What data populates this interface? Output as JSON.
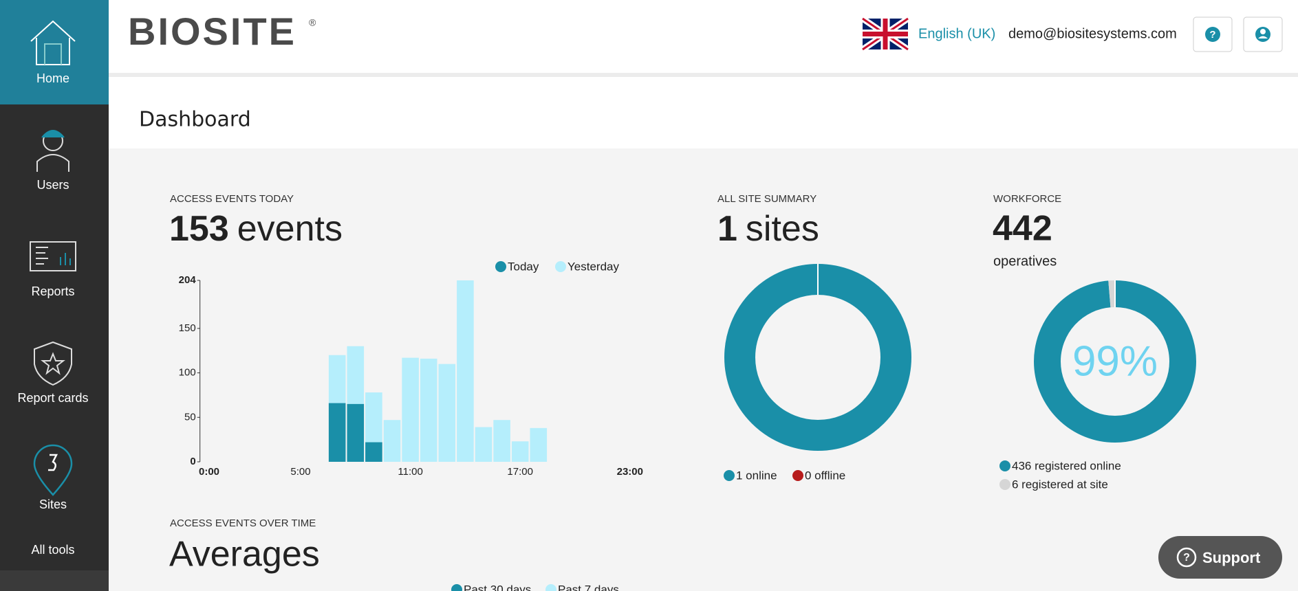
{
  "sidebar": {
    "items": [
      "Home",
      "Users",
      "Reports",
      "Report cards",
      "Sites",
      "All tools"
    ]
  },
  "header": {
    "logo": "BIOSITE",
    "trademark": "®",
    "language": "English (UK)",
    "email": "demo@biositesystems.com"
  },
  "page_title": "Dashboard",
  "access_events": {
    "label": "ACCESS EVENTS TODAY",
    "count": 153,
    "unit": "events",
    "chart": {
      "type": "bar",
      "categories": [
        "0:00",
        null,
        null,
        null,
        null,
        "5:00",
        null,
        null,
        null,
        null,
        null,
        "11:00",
        null,
        null,
        null,
        null,
        null,
        "17:00",
        null,
        null,
        null,
        null,
        null,
        "23:00"
      ],
      "series": [
        {
          "name": "Today",
          "color": "#1a8fa8",
          "values": [
            null,
            null,
            null,
            null,
            null,
            null,
            null,
            66,
            65,
            22,
            null,
            null,
            null,
            null,
            null,
            null,
            null,
            null,
            null,
            null,
            null,
            null,
            null,
            null
          ]
        },
        {
          "name": "Yesterday",
          "color": "#b5eefc",
          "values": [
            null,
            null,
            null,
            null,
            null,
            null,
            null,
            120,
            130,
            78,
            47,
            117,
            116,
            110,
            204,
            39,
            47,
            23,
            38,
            null,
            null,
            null,
            null,
            null
          ]
        }
      ],
      "ylim": [
        0,
        204
      ],
      "yticks": [
        0,
        50,
        100,
        150,
        204
      ]
    }
  },
  "site_summary": {
    "label": "ALL SITE SUMMARY",
    "count": 1,
    "unit": "sites",
    "chart": {
      "type": "donut",
      "values": [
        1,
        0
      ],
      "legend": [
        "1 online",
        "0 offline"
      ],
      "colors": [
        "#1a8fa8",
        "#b71c1c"
      ]
    }
  },
  "workforce": {
    "label": "WORKFORCE",
    "count": 442,
    "unit": "operatives",
    "chart": {
      "type": "donut",
      "values": [
        436,
        6
      ],
      "legend": [
        "436 registered online",
        "6 registered at site"
      ],
      "colors": [
        "#1a8fa8",
        "#d6d6d6"
      ],
      "center_text": "99%"
    }
  },
  "averages": {
    "label": "ACCESS EVENTS OVER TIME",
    "title": "Averages",
    "legend": [
      "Past 30 days",
      "Past 7 days"
    ],
    "colors": [
      "#1a8fa8",
      "#b5eefc"
    ]
  },
  "support": "Support"
}
